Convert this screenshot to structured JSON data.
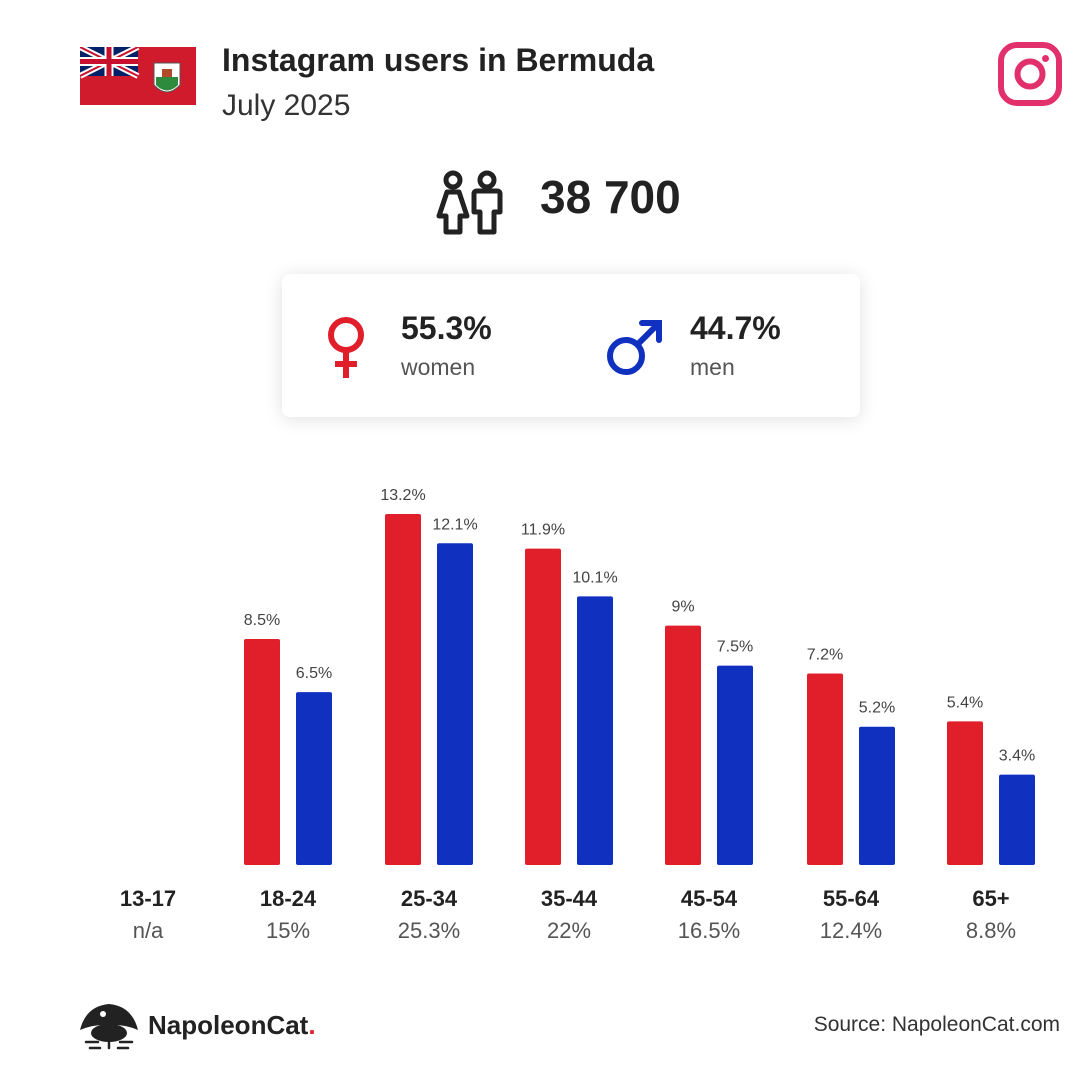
{
  "header": {
    "title": "Instagram users in Bermuda",
    "subtitle": "July 2025"
  },
  "total": {
    "value": "38 700",
    "icon": "people-icon"
  },
  "gender": {
    "women": {
      "pct": "55.3%",
      "label": "women",
      "icon": "female-symbol-icon",
      "color": "#e01f2b"
    },
    "men": {
      "pct": "44.7%",
      "label": "men",
      "icon": "male-symbol-icon",
      "color": "#1030c0"
    }
  },
  "footer": {
    "brand": "NapoleonCat",
    "brand_dot": ".",
    "source": "Source: NapoleonCat.com"
  },
  "colors": {
    "women": "#e01f2b",
    "men": "#1030c0",
    "instagram": "#e1306c",
    "flag_red": "#cf1b2b",
    "flag_blue": "#012169"
  },
  "chart_data": {
    "type": "bar",
    "categories": [
      "13-17",
      "18-24",
      "25-34",
      "35-44",
      "45-54",
      "55-64",
      "65+"
    ],
    "category_totals": [
      "n/a",
      "15%",
      "25.3%",
      "22%",
      "16.5%",
      "12.4%",
      "8.8%"
    ],
    "series": [
      {
        "name": "women",
        "values": [
          null,
          8.5,
          13.2,
          11.9,
          9,
          7.2,
          5.4
        ],
        "labels": [
          "",
          "8.5%",
          "13.2%",
          "11.9%",
          "9%",
          "7.2%",
          "5.4%"
        ]
      },
      {
        "name": "men",
        "values": [
          null,
          6.5,
          12.1,
          10.1,
          7.5,
          5.2,
          3.4
        ],
        "labels": [
          "",
          "6.5%",
          "12.1%",
          "10.1%",
          "7.5%",
          "5.2%",
          "3.4%"
        ]
      }
    ],
    "ylim": [
      0,
      13.2
    ],
    "grid": false,
    "legend": "none"
  }
}
